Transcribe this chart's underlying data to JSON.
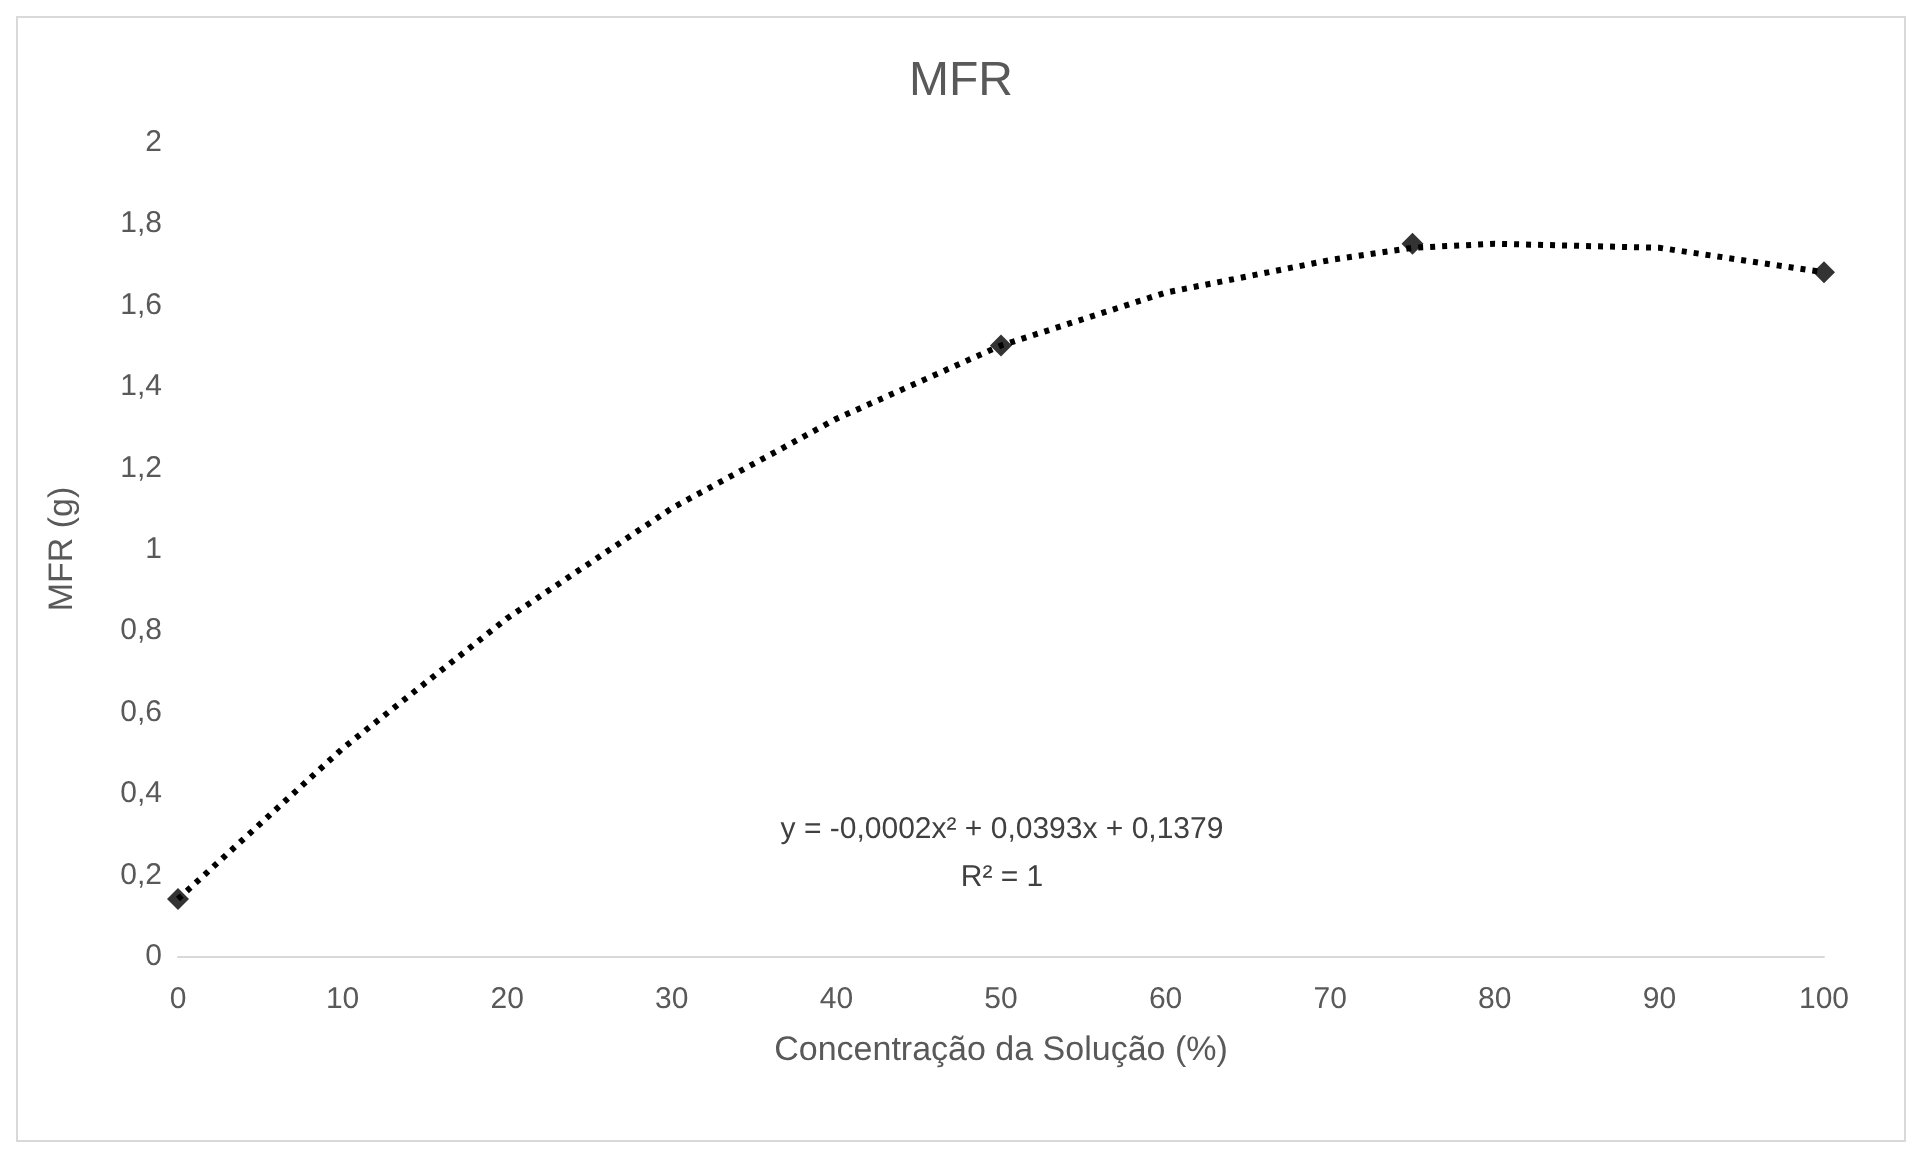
{
  "chart_data": {
    "type": "scatter",
    "title": "MFR",
    "xlabel": "Concentração da Solução (%)",
    "ylabel": "MFR (g)",
    "series": [
      {
        "color": "#000000",
        "marker": "diamond",
        "x": [
          0,
          50,
          75,
          100
        ],
        "values": [
          0.14,
          1.5,
          1.75,
          1.68
        ]
      },
      {
        "type": "line",
        "color": "#000000",
        "line_style": "dotted",
        "marker": "none",
        "x": [
          0,
          10,
          20,
          30,
          40,
          50,
          60,
          70,
          75,
          80,
          90,
          100
        ],
        "values": [
          0.14,
          0.51,
          0.83,
          1.1,
          1.32,
          1.5,
          1.63,
          1.71,
          1.74,
          1.75,
          1.74,
          1.68
        ]
      }
    ],
    "annotations": [
      "y = -0,0002x² + 0,0393x + 0,1379",
      "R² = 1"
    ],
    "grid": false,
    "xlim": [
      0,
      100
    ],
    "xticks": [
      0,
      10,
      20,
      30,
      40,
      50,
      60,
      70,
      80,
      90,
      100
    ],
    "ylim": [
      0,
      2
    ],
    "yticks": [
      0,
      {
        "value": 0.2,
        "label": "0,2"
      },
      {
        "value": 0.4,
        "label": "0,4"
      },
      {
        "value": 0.6,
        "label": "0,6"
      },
      {
        "value": 0.8,
        "label": "0,8"
      },
      1,
      {
        "value": 1.2,
        "label": "1,2"
      },
      {
        "value": 1.4,
        "label": "1,4"
      },
      {
        "value": 1.6,
        "label": "1,6"
      },
      {
        "value": 1.8,
        "label": "1,8"
      },
      2
    ]
  }
}
